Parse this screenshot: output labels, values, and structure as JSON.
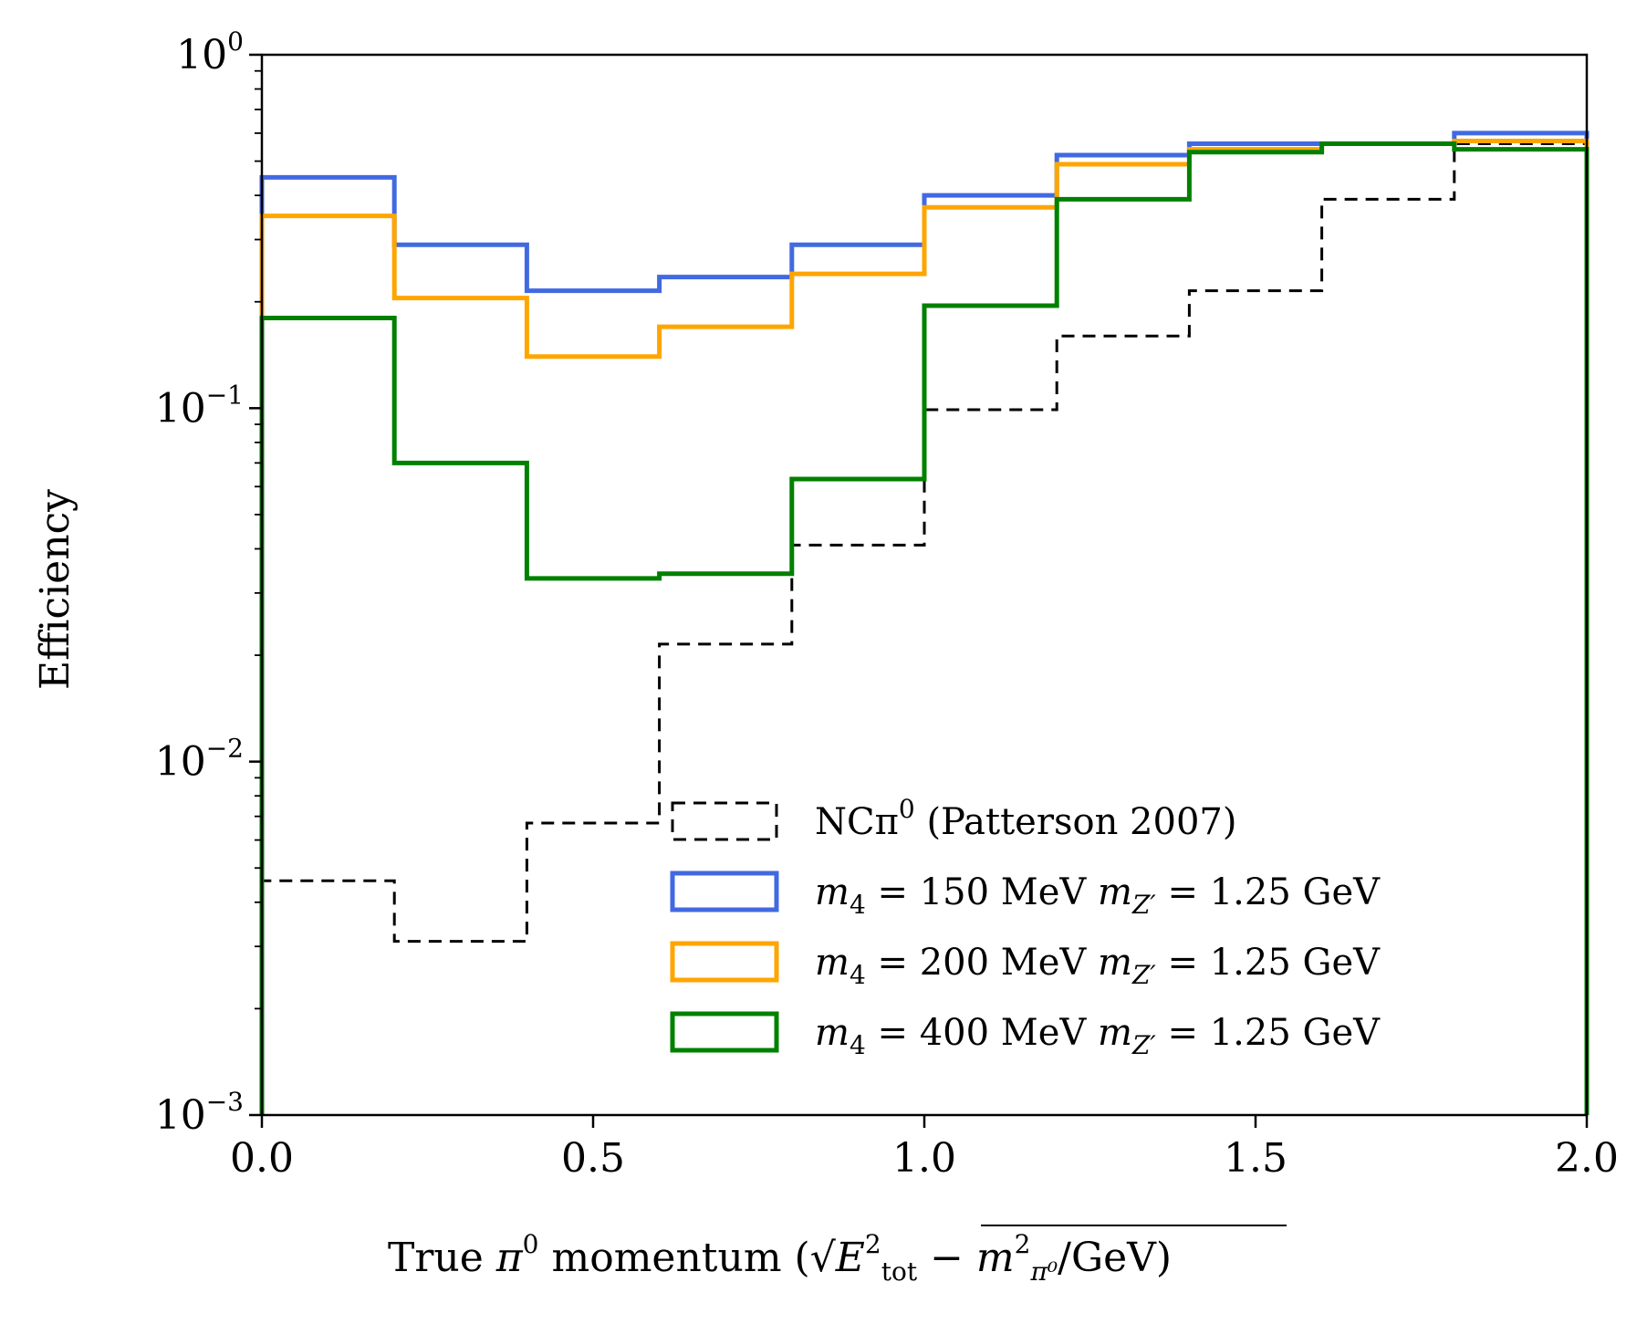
{
  "chart_data": {
    "type": "step",
    "title": "",
    "xlabel": "True π⁰ momentum (√(E²tot − m²π⁰)/GeV)",
    "ylabel": "Efficiency",
    "xlim": [
      0.0,
      2.0
    ],
    "ylim": [
      0.001,
      1
    ],
    "yscale": "log",
    "grid": false,
    "legend_position": "lower-right",
    "xticks": [
      0.0,
      0.5,
      1.0,
      1.5,
      2.0
    ],
    "xtick_labels": [
      "0.0",
      "0.5",
      "1.0",
      "1.5",
      "2.0"
    ],
    "yticks": [
      {
        "value": 1,
        "base": "10",
        "exp": "0"
      },
      {
        "value": 0.1,
        "base": "10",
        "exp": "−1"
      },
      {
        "value": 0.01,
        "base": "10",
        "exp": "−2"
      },
      {
        "value": 0.001,
        "base": "10",
        "exp": "−3"
      }
    ],
    "bin_edges": [
      0.0,
      0.2,
      0.4,
      0.6,
      0.8,
      1.0,
      1.2,
      1.4,
      1.6,
      1.8,
      2.0
    ],
    "series": [
      {
        "name": "NCπ⁰ (Patterson 2007)",
        "legend": {
          "main": "NCπ",
          "sup": "0",
          "rest": " (Patterson 2007)"
        },
        "color": "#000000",
        "dashed": true,
        "values": [
          0.0046,
          0.0031,
          0.0067,
          0.0215,
          0.041,
          0.099,
          0.16,
          0.215,
          0.39,
          0.56
        ]
      },
      {
        "name": "m4 = 150 MeV mZ′ = 1.25 GeV",
        "legend": {
          "m4": "150"
        },
        "color": "#4169e1",
        "dashed": false,
        "values": [
          0.45,
          0.29,
          0.215,
          0.235,
          0.29,
          0.4,
          0.52,
          0.56,
          0.56,
          0.6
        ]
      },
      {
        "name": "m4 = 200 MeV mZ′ = 1.25 GeV",
        "legend": {
          "m4": "200"
        },
        "color": "#ffa500",
        "dashed": false,
        "values": [
          0.35,
          0.205,
          0.14,
          0.17,
          0.24,
          0.37,
          0.49,
          0.54,
          0.56,
          0.57
        ]
      },
      {
        "name": "m4 = 400 MeV mZ′ = 1.25 GeV",
        "legend": {
          "m4": "400"
        },
        "color": "#008000",
        "dashed": false,
        "values": [
          0.18,
          0.07,
          0.033,
          0.034,
          0.063,
          0.195,
          0.39,
          0.53,
          0.56,
          0.54
        ]
      }
    ]
  }
}
